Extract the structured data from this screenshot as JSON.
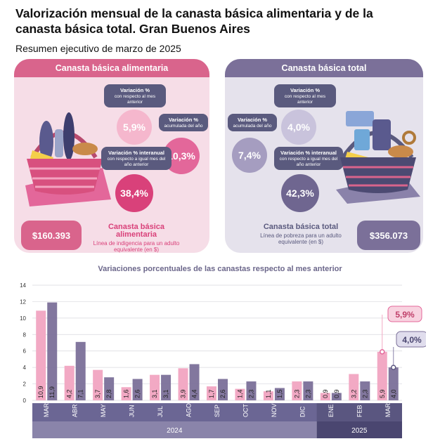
{
  "header": {
    "title": "Valorización mensual de la canasta básica alimentaria y de la canasta básica total. Gran Buenos Aires",
    "subtitle": "Resumen ejecutivo de marzo de 2025"
  },
  "cba": {
    "panel_title": "Canasta básica alimentaria",
    "var_mensual": {
      "label": "Variación %",
      "sub": "con respecto al mes anterior",
      "value": "5,9%"
    },
    "var_acumulada": {
      "label": "Variación %",
      "sub": "acumulada del año",
      "value": "10,3%"
    },
    "var_interanual": {
      "label": "Variación % interanual",
      "sub": "con respecto a igual mes del año anterior",
      "value": "38,4%"
    },
    "price": "$160.393",
    "name": "Canasta básica alimentaria",
    "desc": "Línea de indigencia para un adulto equivalente (en $)"
  },
  "cbt": {
    "panel_title": "Canasta básica total",
    "var_mensual": {
      "label": "Variación %",
      "sub": "con respecto al mes anterior",
      "value": "4,0%"
    },
    "var_acumulada": {
      "label": "Variación %",
      "sub": "acumulada del año",
      "value": "7,4%"
    },
    "var_interanual": {
      "label": "Variación % interanual",
      "sub": "con respecto a igual mes del año anterior",
      "value": "42,3%"
    },
    "price": "$356.073",
    "name": "Canasta básica total",
    "desc": "Línea de pobreza para un adulto equivalente (en $)"
  },
  "chart_data": {
    "type": "bar",
    "title": "Variaciones porcentuales de las canastas respecto al mes anterior",
    "categories": [
      "MAR",
      "ABR",
      "MAY",
      "JUN",
      "JUL",
      "AGO",
      "SEP",
      "OCT",
      "NOV",
      "DIC",
      "ENE",
      "FEB",
      "MAR"
    ],
    "years": [
      {
        "label": "2024",
        "span": 10
      },
      {
        "label": "2025",
        "span": 3
      }
    ],
    "series": [
      {
        "values": [
          10.9,
          4.2,
          3.7,
          1.6,
          3.1,
          3.9,
          1.7,
          1.4,
          1.1,
          2.3,
          0.9,
          3.2,
          5.9
        ],
        "labels": [
          "10,9",
          "4,2",
          "3,7",
          "1,6",
          "3,1",
          "3,9",
          "1,7",
          "1,4",
          "1,1",
          "2,3",
          "0,9",
          "3,2",
          "5,9"
        ],
        "color": "#f2a9c4"
      },
      {
        "values": [
          11.9,
          7.1,
          2.8,
          2.6,
          3.1,
          4.4,
          2.6,
          2.3,
          1.5,
          2.3,
          0.9,
          2.3,
          4.0
        ],
        "labels": [
          "11,9",
          "7,1",
          "2,8",
          "2,6",
          "3,1",
          "4,4",
          "2,6",
          "2,3",
          "1,5",
          "2,3",
          "0,9",
          "2,3",
          "4,0"
        ],
        "color": "#7b7099"
      }
    ],
    "callouts": [
      "5,9%",
      "4,0%"
    ],
    "yticks": [
      0,
      2,
      4,
      6,
      8,
      10,
      12,
      14
    ],
    "ylim": [
      0,
      14
    ],
    "grid": true
  }
}
